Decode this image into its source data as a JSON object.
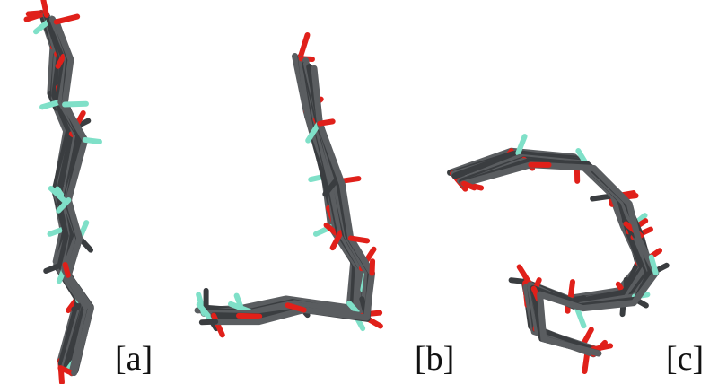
{
  "panels": [
    {
      "label": "[a]"
    },
    {
      "label": "[b]"
    },
    {
      "label": "[c]"
    }
  ]
}
